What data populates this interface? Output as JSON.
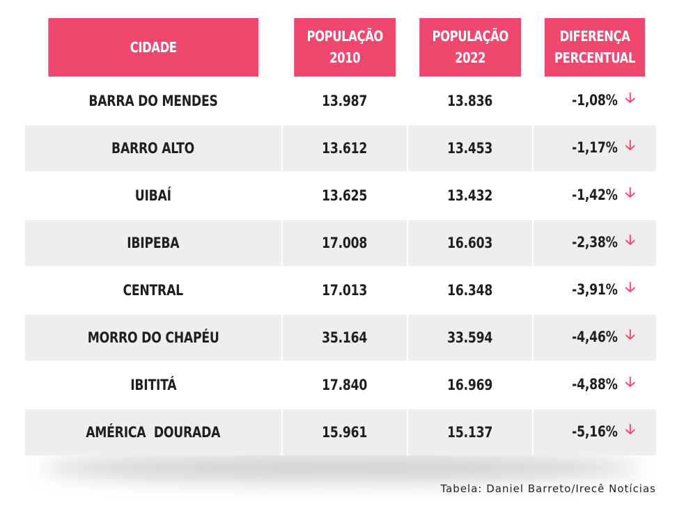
{
  "table": {
    "headers": {
      "city": "CIDADE",
      "pop2010_line1": "POPULAÇÃO",
      "pop2010_line2": "2010",
      "pop2022_line1": "POPULAÇÃO",
      "pop2022_line2": "2022",
      "diff_line1": "DIFERENÇA",
      "diff_line2": "PERCENTUAL"
    },
    "rows": [
      {
        "city": "BARRA DO MENDES",
        "pop2010": "13.987",
        "pop2022": "13.836",
        "diff": "-1,08%"
      },
      {
        "city": "BARRO ALTO",
        "pop2010": "13.612",
        "pop2022": "13.453",
        "diff": "-1,17%"
      },
      {
        "city": "UIBAÍ",
        "pop2010": "13.625",
        "pop2022": "13.432",
        "diff": "-1,42%"
      },
      {
        "city": "IBIPEBA",
        "pop2010": "17.008",
        "pop2022": "16.603",
        "diff": "-2,38%"
      },
      {
        "city": "CENTRAL",
        "pop2010": "17.013",
        "pop2022": "16.348",
        "diff": "-3,91%"
      },
      {
        "city": "MORRO DO CHAPÉU",
        "pop2010": "35.164",
        "pop2022": "33.594",
        "diff": "-4,46%"
      },
      {
        "city": "IBITITÁ",
        "pop2010": "17.840",
        "pop2022": "16.969",
        "diff": "-4,88%"
      },
      {
        "city": "AMÉRICA  DOURADA",
        "pop2010": "15.961",
        "pop2022": "15.137",
        "diff": "-5,16%"
      }
    ],
    "arrow_icon": "arrow-down-icon"
  },
  "caption": "Tabela: Daniel Barreto/Irecê Notícias",
  "colors": {
    "header_bg": "#f0476f",
    "arrow": "#f0476f",
    "row_shaded": "#efeded"
  }
}
